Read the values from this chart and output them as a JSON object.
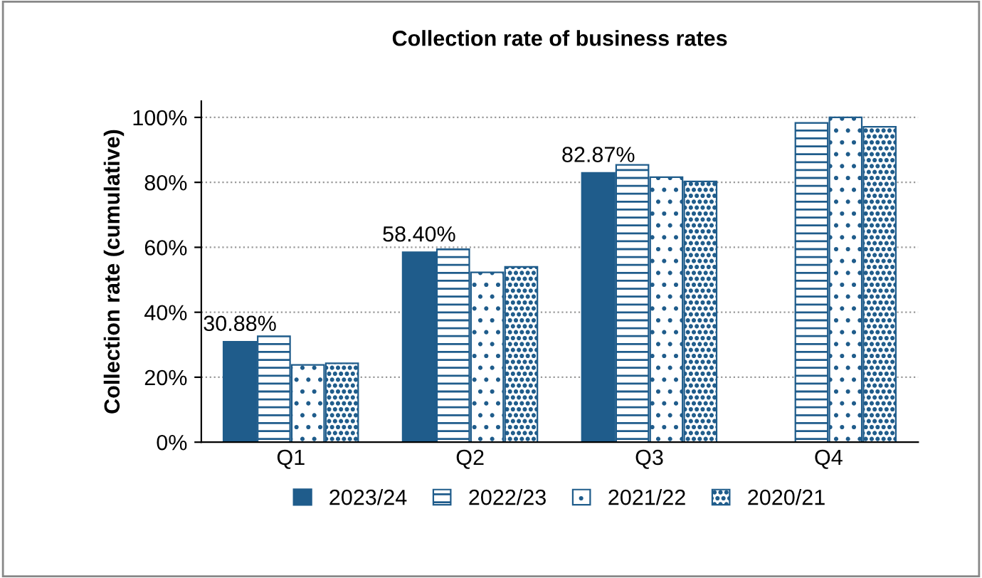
{
  "chart_data": {
    "type": "bar",
    "title": "Collection rate of business rates",
    "ylabel": "Collection rate (cumulative)",
    "categories": [
      "Q1",
      "Q2",
      "Q3",
      "Q4"
    ],
    "series": [
      {
        "name": "2023/24",
        "color": "#1f5c8b",
        "values": [
          30.88,
          58.4,
          82.87,
          null
        ],
        "value_labels": [
          "30.88%",
          "58.40%",
          "82.87%",
          null
        ]
      },
      {
        "name": "2022/23",
        "color": "#1f5c8b",
        "values": [
          32.6,
          59.4,
          85.4,
          98.3
        ]
      },
      {
        "name": "2021/22",
        "color": "#1f5c8b",
        "values": [
          23.8,
          52.3,
          81.6,
          100
        ]
      },
      {
        "name": "2020/21",
        "color": "#1f5c8b",
        "values": [
          24.3,
          54.0,
          80.3,
          97.1
        ]
      }
    ],
    "ylim": [
      0,
      105
    ],
    "yticks": [
      {
        "value": 0,
        "label": "0%"
      },
      {
        "value": 20,
        "label": "20%"
      },
      {
        "value": 40,
        "label": "40%"
      },
      {
        "value": 60,
        "label": "60%"
      },
      {
        "value": 80,
        "label": "80%"
      },
      {
        "value": 100,
        "label": "100%"
      }
    ],
    "grid": "y",
    "legend": "bottom"
  }
}
